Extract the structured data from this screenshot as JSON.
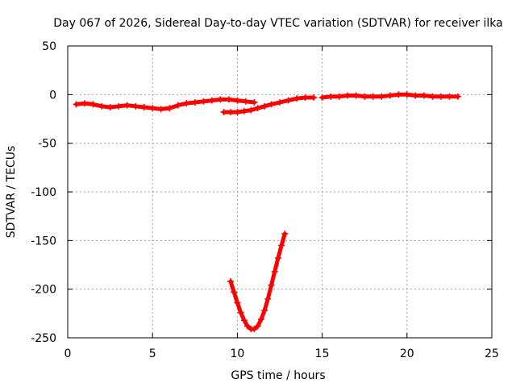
{
  "chart_data": {
    "type": "scatter",
    "title": "Day 067 of 2026, Sidereal Day-to-day VTEC variation (SDTVAR) for receiver ilka",
    "xlabel": "GPS time / hours",
    "ylabel": "SDTVAR / TECUs",
    "xlim": [
      0,
      25
    ],
    "ylim": [
      -250,
      50
    ],
    "xticks": [
      0,
      5,
      10,
      15,
      20,
      25
    ],
    "yticks": [
      50,
      0,
      -50,
      -100,
      -150,
      -200,
      -250
    ],
    "xtick_labels": [
      "0",
      "5",
      "10",
      "15",
      "20",
      "25"
    ],
    "ytick_labels": [
      "50",
      "0",
      "-50",
      "-100",
      "-150",
      "-200",
      "-250"
    ],
    "grid": true,
    "legend": "none",
    "color": "#ff0000",
    "series": [
      {
        "name": "arc-1",
        "x": [
          0.5,
          1.0,
          1.5,
          2.0,
          2.5,
          3.0,
          3.5,
          4.0,
          4.5,
          5.0,
          5.5,
          6.0,
          6.5,
          7.0,
          7.5,
          8.0,
          8.5,
          9.0,
          9.5,
          10.0,
          10.5,
          11.0
        ],
        "y": [
          -10,
          -9,
          -10,
          -12,
          -13,
          -12,
          -11,
          -12,
          -13,
          -14,
          -15,
          -14,
          -11,
          -9,
          -8,
          -7,
          -6,
          -5,
          -5,
          -6,
          -7,
          -8
        ]
      },
      {
        "name": "arc-2",
        "x": [
          9.2,
          9.6,
          10.0,
          10.4,
          10.8,
          11.2,
          11.6,
          12.0,
          12.5,
          13.0,
          13.5,
          14.0,
          14.5
        ],
        "y": [
          -18,
          -18,
          -18,
          -17,
          -16,
          -14,
          -12,
          -10,
          -8,
          -6,
          -4,
          -3,
          -3
        ]
      },
      {
        "name": "arc-3",
        "x": [
          15.0,
          15.5,
          16.0,
          16.5,
          17.0,
          17.5,
          18.0,
          18.5,
          19.0,
          19.5,
          20.0,
          20.5,
          21.0,
          21.5,
          22.0,
          22.5,
          23.0
        ],
        "y": [
          -3,
          -2,
          -2,
          -1,
          -1,
          -2,
          -2,
          -2,
          -1,
          0,
          0,
          -1,
          -1,
          -2,
          -2,
          -2,
          -2
        ]
      },
      {
        "name": "arc-4",
        "x": [
          9.6,
          9.8,
          10.0,
          10.2,
          10.4,
          10.6,
          10.8,
          11.0,
          11.2,
          11.4,
          11.6,
          11.8,
          12.0,
          12.2,
          12.4,
          12.6,
          12.8
        ],
        "y": [
          -192,
          -203,
          -214,
          -224,
          -232,
          -238,
          -241,
          -241,
          -238,
          -231,
          -222,
          -210,
          -196,
          -182,
          -168,
          -155,
          -143
        ]
      }
    ]
  }
}
